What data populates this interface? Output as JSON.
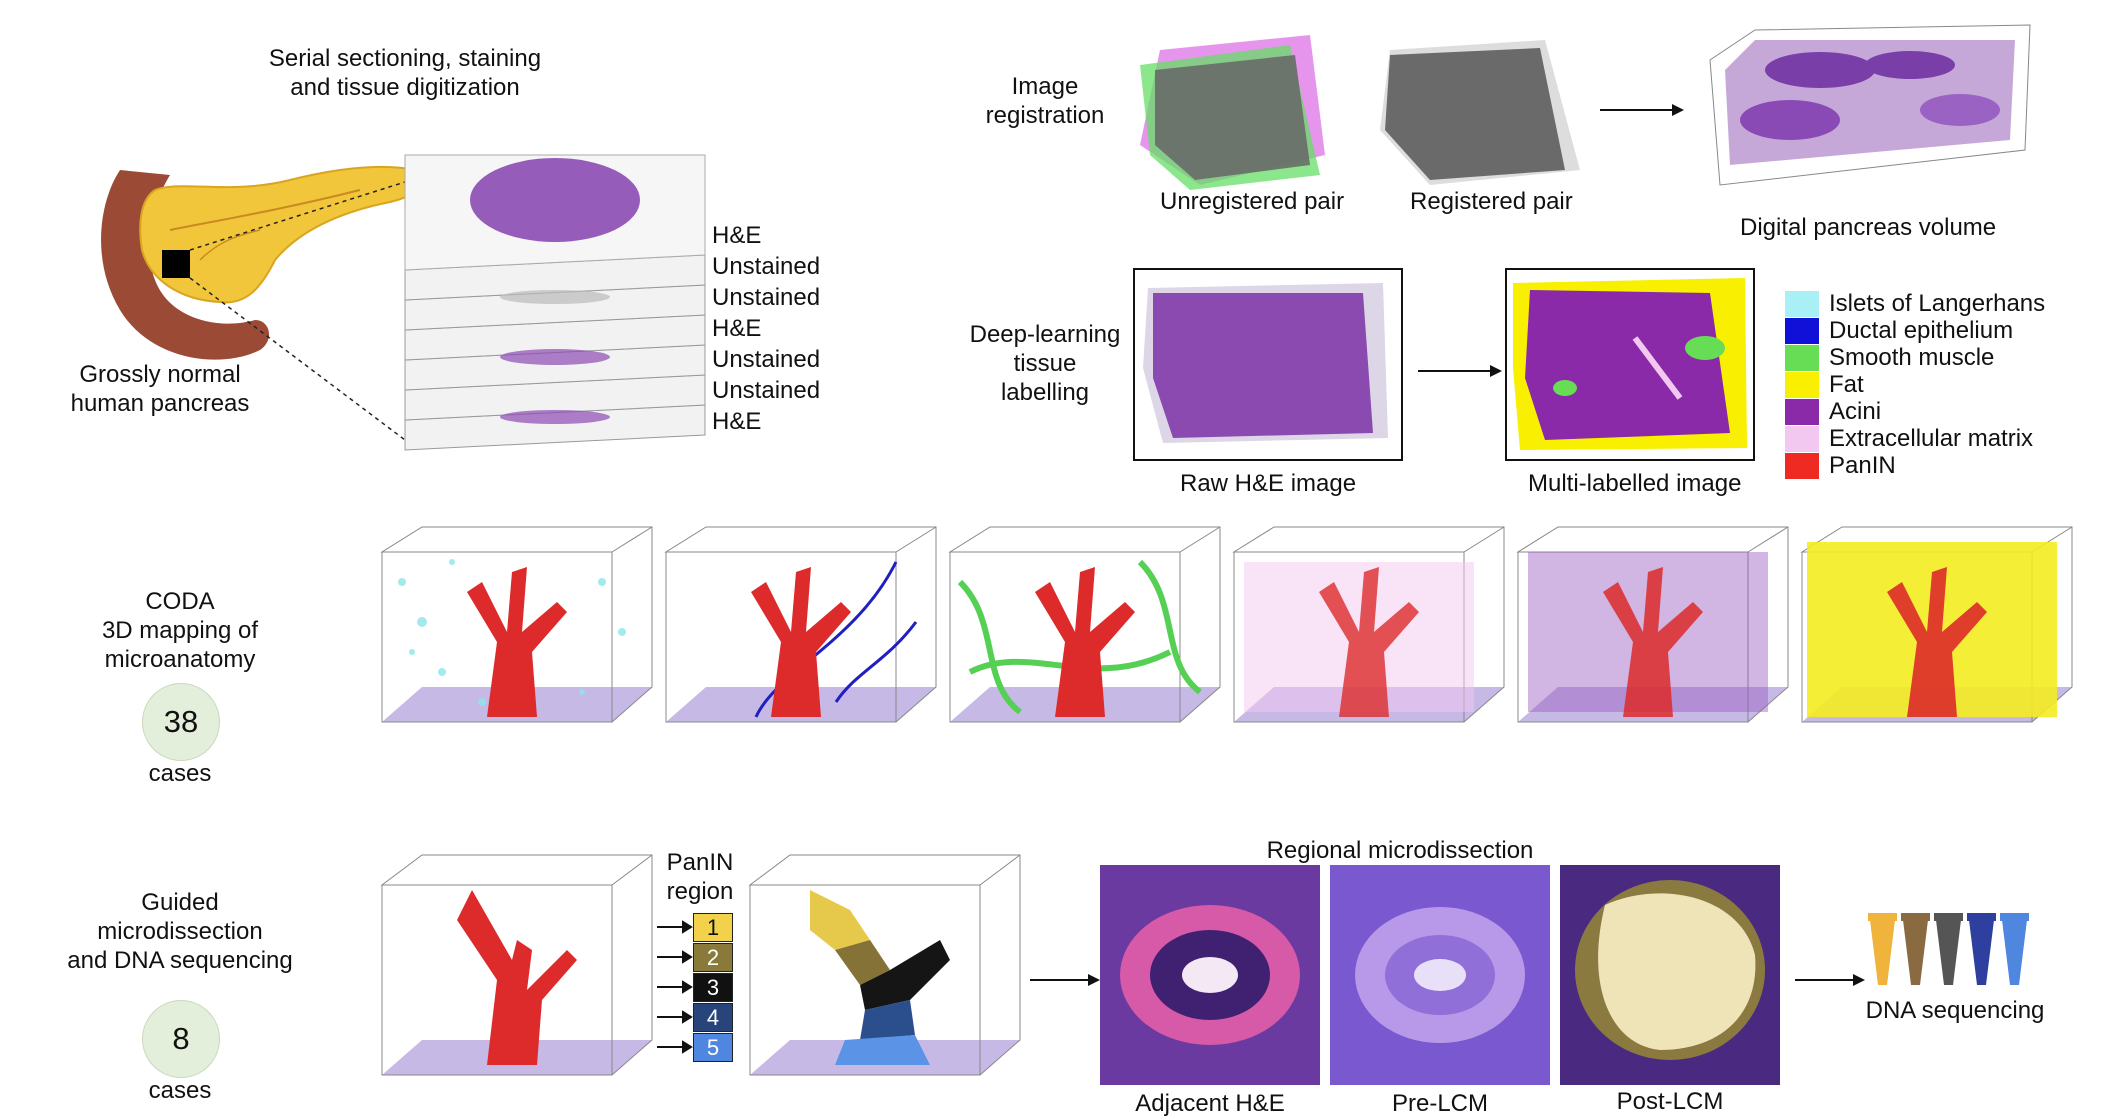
{
  "sectioning": {
    "title_line1": "Serial sectioning, staining",
    "title_line2": "and tissue digitization",
    "stack_labels": [
      "H&E",
      "Unstained",
      "Unstained",
      "H&E",
      "Unstained",
      "Unstained",
      "H&E"
    ]
  },
  "pancreas": {
    "label_line1": "Grossly normal",
    "label_line2": "human pancreas"
  },
  "registration": {
    "label_line1": "Image",
    "label_line2": "registration",
    "unregistered": "Unregistered pair",
    "registered": "Registered pair",
    "volume": "Digital pancreas volume"
  },
  "labelling": {
    "label_line1": "Deep-learning",
    "label_line2": "tissue",
    "label_line3": "labelling",
    "raw": "Raw H&E image",
    "multi": "Multi-labelled image"
  },
  "legend": [
    {
      "name": "Islets of Langerhans",
      "color": "#a8f0f5"
    },
    {
      "name": "Ductal epithelium",
      "color": "#1010d8"
    },
    {
      "name": "Smooth muscle",
      "color": "#66dd55"
    },
    {
      "name": "Fat",
      "color": "#f8f000"
    },
    {
      "name": "Acini",
      "color": "#8a2aa8"
    },
    {
      "name": "Extracellular matrix",
      "color": "#f3c8f0"
    },
    {
      "name": "PanIN",
      "color": "#ee2a22"
    }
  ],
  "coda": {
    "label_line1": "CODA",
    "label_line2": "3D mapping of",
    "label_line3": "microanatomy",
    "count": "38",
    "count_unit": "cases"
  },
  "guided": {
    "label_line1": "Guided",
    "label_line2": "microdissection",
    "label_line3": "and DNA sequencing",
    "count": "8",
    "count_unit": "cases",
    "panin_line1": "PanIN",
    "panin_line2": "region",
    "regions": [
      {
        "num": "1",
        "color": "#f2d24a",
        "fg": "#111"
      },
      {
        "num": "2",
        "color": "#8a7a3a",
        "fg": "#fff"
      },
      {
        "num": "3",
        "color": "#111111",
        "fg": "#fff"
      },
      {
        "num": "4",
        "color": "#27457a",
        "fg": "#fff"
      },
      {
        "num": "5",
        "color": "#4f87e0",
        "fg": "#fff"
      }
    ]
  },
  "microdissection": {
    "title": "Regional microdissection",
    "adjacent": "Adjacent H&E",
    "pre": "Pre-LCM",
    "post": "Post-LCM",
    "dna": "DNA sequencing"
  }
}
